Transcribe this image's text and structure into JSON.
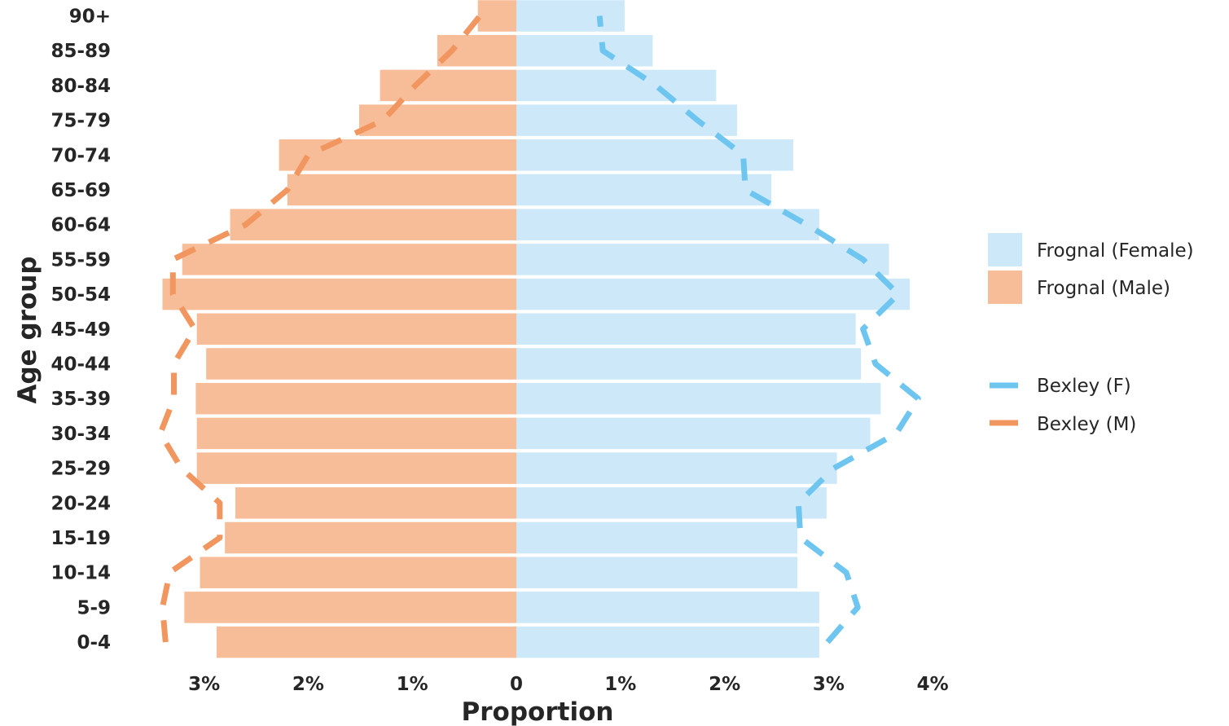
{
  "chart_data": {
    "type": "bar",
    "orientation": "horizontal-pyramid",
    "xlabel": "Proportion",
    "ylabel": "Age group",
    "categories": [
      "0-4",
      "5-9",
      "10-14",
      "15-19",
      "20-24",
      "25-29",
      "30-34",
      "35-39",
      "40-44",
      "45-49",
      "50-54",
      "55-59",
      "60-64",
      "65-69",
      "70-74",
      "75-79",
      "80-84",
      "85-89",
      "90+"
    ],
    "xlim": [
      -3.4,
      4.0
    ],
    "xticks": [
      {
        "value": -3,
        "label": "3%"
      },
      {
        "value": -2,
        "label": "2%"
      },
      {
        "value": -1,
        "label": "1%"
      },
      {
        "value": 0,
        "label": "0"
      },
      {
        "value": 1,
        "label": "1%"
      },
      {
        "value": 2,
        "label": "2%"
      },
      {
        "value": 3,
        "label": "3%"
      },
      {
        "value": 4,
        "label": "4%"
      }
    ],
    "series": [
      {
        "name": "Frognal (Female)",
        "kind": "bar",
        "side": "right",
        "color": "#cde8f8",
        "values": [
          2.91,
          2.91,
          2.7,
          2.7,
          2.98,
          3.08,
          3.4,
          3.5,
          3.31,
          3.26,
          3.78,
          3.58,
          2.91,
          2.45,
          2.66,
          2.12,
          1.92,
          1.31,
          1.04
        ]
      },
      {
        "name": "Frognal (Male)",
        "kind": "bar",
        "side": "left",
        "color": "#f7bc98",
        "values": [
          2.88,
          3.19,
          3.04,
          2.8,
          2.7,
          3.07,
          3.07,
          3.08,
          2.98,
          3.07,
          3.4,
          3.21,
          2.75,
          2.2,
          2.28,
          1.51,
          1.31,
          0.76,
          0.37
        ]
      },
      {
        "name": "Bexley (F)",
        "kind": "line",
        "side": "right",
        "color": "#6ec6f0",
        "values": [
          2.99,
          3.28,
          3.17,
          2.73,
          2.71,
          3.05,
          3.65,
          3.86,
          3.45,
          3.33,
          3.67,
          3.33,
          2.79,
          2.2,
          2.18,
          1.74,
          1.34,
          0.83,
          0.8
        ]
      },
      {
        "name": "Bexley (M)",
        "kind": "line",
        "side": "left",
        "color": "#f29660",
        "values": [
          3.37,
          3.4,
          3.33,
          2.85,
          2.85,
          3.22,
          3.42,
          3.29,
          3.29,
          3.09,
          3.3,
          3.3,
          2.6,
          2.2,
          2.0,
          1.28,
          0.97,
          0.62,
          0.35
        ]
      }
    ],
    "grid": false,
    "legend_position": "right"
  }
}
